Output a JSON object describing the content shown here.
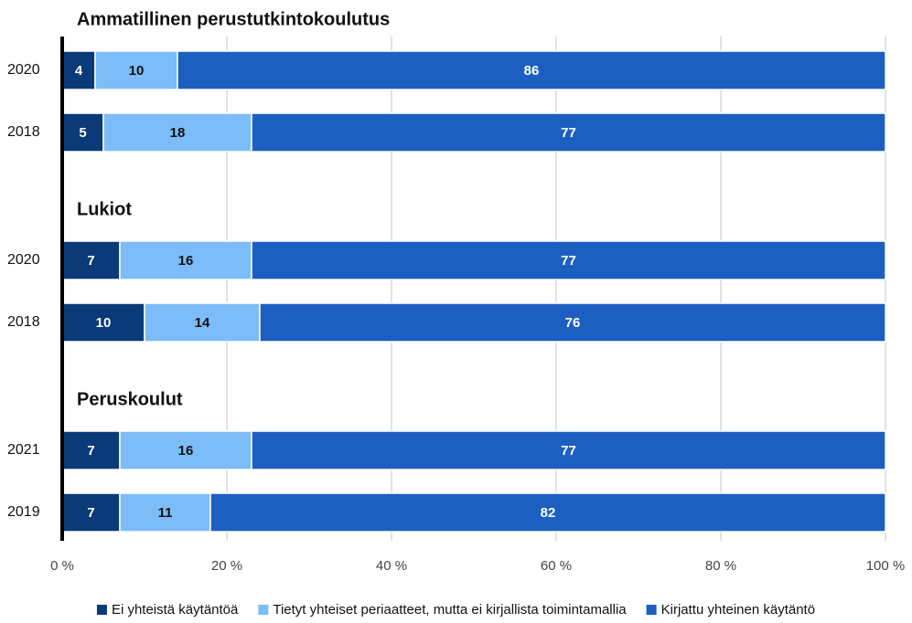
{
  "chart_data": {
    "type": "bar",
    "orientation": "horizontal",
    "stacked": true,
    "groups": [
      {
        "title": "Ammatillinen perustutkintokoulutus",
        "categories": [
          "2020",
          "2018"
        ]
      },
      {
        "title": "Lukiot",
        "categories": [
          "2020",
          "2018"
        ]
      },
      {
        "title": "Peruskoulut",
        "categories": [
          "2021",
          "2019"
        ]
      }
    ],
    "series": [
      {
        "name": "Ei yhteistä käytäntöä",
        "color": "#0b3a78",
        "label_color": "#ffffff",
        "values": [
          4,
          5,
          7,
          10,
          7,
          7
        ]
      },
      {
        "name": "Tietyt yhteiset periaatteet, mutta ei kirjallista toimintamallia",
        "color": "#7cbcf8",
        "label_color": "#111111",
        "values": [
          10,
          18,
          16,
          14,
          16,
          11
        ]
      },
      {
        "name": "Kirjattu yhteinen käytäntö",
        "color": "#1c5fc0",
        "label_color": "#ffffff",
        "values": [
          86,
          77,
          77,
          76,
          77,
          82
        ]
      }
    ],
    "xlim": [
      0,
      100
    ],
    "xticks": [
      {
        "value": 0,
        "label": "0 %"
      },
      {
        "value": 20,
        "label": "20 %"
      },
      {
        "value": 40,
        "label": "40 %"
      },
      {
        "value": 60,
        "label": "60 %"
      },
      {
        "value": 80,
        "label": "80 %"
      },
      {
        "value": 100,
        "label": "100 %"
      }
    ],
    "grid": true,
    "legend": "bottom"
  }
}
